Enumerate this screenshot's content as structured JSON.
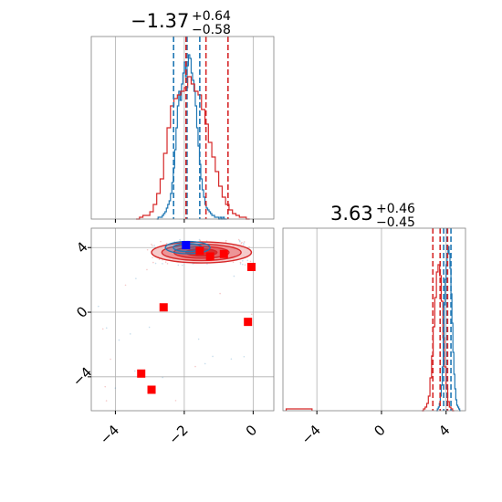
{
  "chart_data": {
    "type": "corner",
    "colors": {
      "red": "#d62728",
      "blue": "#1f77b4",
      "marker_red": "#ff0000",
      "marker_blue": "#0000ff"
    },
    "grid": true,
    "panels": [
      {
        "id": "hist_x",
        "type": "histogram",
        "title": {
          "value": "−1.37",
          "plus": "+0.64",
          "minus": "−0.58"
        },
        "xlim": [
          -4.7,
          0.6
        ],
        "xticks": [
          -4,
          -2,
          0
        ],
        "series": [
          {
            "name": "",
            "color": "#1f77b4",
            "bin_start": -2.8,
            "bin_width": 0.04,
            "values": [
              0,
              1,
              1,
              1,
              2,
              3,
              4,
              6,
              8,
              10,
              14,
              20,
              28,
              38,
              50,
              62,
              70,
              65,
              74,
              80,
              86,
              78,
              84,
              90,
              88,
              80,
              76,
              70,
              62,
              50,
              40,
              30,
              22,
              16,
              12,
              8,
              6,
              5,
              4,
              3,
              2,
              2,
              1,
              1,
              1,
              0,
              1,
              0,
              1,
              0,
              0
            ]
          },
          {
            "name": "",
            "color": "#d62728",
            "bin_start": -3.4,
            "bin_width": 0.1,
            "values": [
              0,
              1,
              2,
              2,
              4,
              8,
              14,
              22,
              36,
              50,
              62,
              66,
              68,
              70,
              72,
              78,
              74,
              70,
              68,
              60,
              52,
              42,
              34,
              26,
              18,
              12,
              8,
              5,
              3,
              2,
              1,
              1,
              0
            ]
          }
        ],
        "quantile_lines": {
          "blue": [
            -2.31,
            -1.92,
            -1.55
          ],
          "red": [
            -1.95,
            -1.37,
            -0.73
          ]
        }
      },
      {
        "id": "scatter_xy",
        "type": "contour_scatter",
        "xlim": [
          -4.7,
          0.6
        ],
        "ylim": [
          -6.1,
          5.2
        ],
        "xticks": [
          -4,
          -2,
          0
        ],
        "yticks": [
          -4,
          0,
          4
        ],
        "red_markers": [
          {
            "x": -1.55,
            "y": 3.8
          },
          {
            "x": -1.25,
            "y": 3.45
          },
          {
            "x": -0.85,
            "y": 3.6
          },
          {
            "x": -0.05,
            "y": 2.8
          },
          {
            "x": -2.6,
            "y": 0.3
          },
          {
            "x": -0.15,
            "y": -0.6
          },
          {
            "x": -3.25,
            "y": -3.8
          },
          {
            "x": -2.95,
            "y": -4.8
          }
        ],
        "blue_marker": {
          "x": -1.95,
          "y": 4.15
        },
        "contours": {
          "red": {
            "cx": -1.5,
            "cy": 3.7,
            "levels": [
              [
                1.45,
                0.65
              ],
              [
                1.15,
                0.5
              ],
              [
                0.8,
                0.36
              ],
              [
                0.45,
                0.22
              ]
            ]
          },
          "blue": {
            "cx": -1.9,
            "cy": 4.0,
            "levels": [
              [
                0.65,
                0.38
              ],
              [
                0.42,
                0.25
              ]
            ]
          }
        }
      },
      {
        "id": "hist_y",
        "type": "histogram",
        "title": {
          "value": "3.63",
          "plus": "+0.46",
          "minus": "−0.45"
        },
        "xlim": [
          -6.1,
          5.2
        ],
        "xticks": [
          -4,
          0,
          4
        ],
        "series": [
          {
            "name": "",
            "color": "#1f77b4",
            "bin_start": 3.4,
            "bin_width": 0.06,
            "values": [
              0,
              1,
              2,
              4,
              8,
              14,
              24,
              40,
              58,
              72,
              80,
              86,
              90,
              86,
              78,
              64,
              48,
              32,
              20,
              12,
              6,
              3,
              2,
              1,
              0
            ]
          },
          {
            "name": "",
            "color": "#d62728",
            "bin_start": 2.5,
            "bin_width": 0.1,
            "values": [
              0,
              1,
              2,
              4,
              8,
              18,
              30,
              46,
              62,
              76,
              80,
              74,
              60,
              40,
              24,
              12,
              5,
              2,
              1,
              0
            ]
          }
        ],
        "outlier_bins": [
          {
            "x0": -5.9,
            "x1": -4.3,
            "value": 1,
            "color": "#d62728"
          }
        ],
        "quantile_lines": {
          "blue": [
            3.85,
            4.05,
            4.3
          ],
          "red": [
            3.18,
            3.63,
            4.09
          ]
        }
      }
    ]
  }
}
